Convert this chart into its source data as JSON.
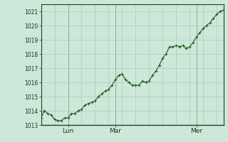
{
  "background_color": "#cce8d8",
  "plot_bg_color": "#cce8d8",
  "grid_color": "#aaccbb",
  "line_color": "#1a5c1a",
  "marker_color": "#1a5c1a",
  "text_color": "#223322",
  "ylim": [
    1013,
    1021.5
  ],
  "yticks": [
    1013,
    1014,
    1015,
    1016,
    1017,
    1018,
    1019,
    1020,
    1021
  ],
  "xtick_labels": [
    "Lun",
    "Mar",
    "Mer"
  ],
  "xtick_positions": [
    0.08,
    0.42,
    0.78
  ],
  "vline_positions": [
    0.08,
    0.42,
    0.78
  ],
  "y_values": [
    1013.5,
    1014.0,
    1013.8,
    1013.7,
    1013.4,
    1013.3,
    1013.3,
    1013.5,
    1013.5,
    1013.8,
    1013.8,
    1014.0,
    1014.1,
    1014.4,
    1014.5,
    1014.6,
    1014.7,
    1015.0,
    1015.2,
    1015.4,
    1015.5,
    1015.8,
    1016.2,
    1016.5,
    1016.6,
    1016.2,
    1016.0,
    1015.8,
    1015.8,
    1015.8,
    1016.1,
    1016.0,
    1016.1,
    1016.5,
    1016.8,
    1017.2,
    1017.7,
    1018.0,
    1018.5,
    1018.5,
    1018.6,
    1018.5,
    1018.6,
    1018.4,
    1018.5,
    1018.8,
    1019.2,
    1019.5,
    1019.8,
    1020.0,
    1020.2,
    1020.5,
    1020.8,
    1021.0,
    1021.1
  ],
  "n_xgrid": 13,
  "figsize": [
    3.2,
    2.0
  ],
  "dpi": 100
}
